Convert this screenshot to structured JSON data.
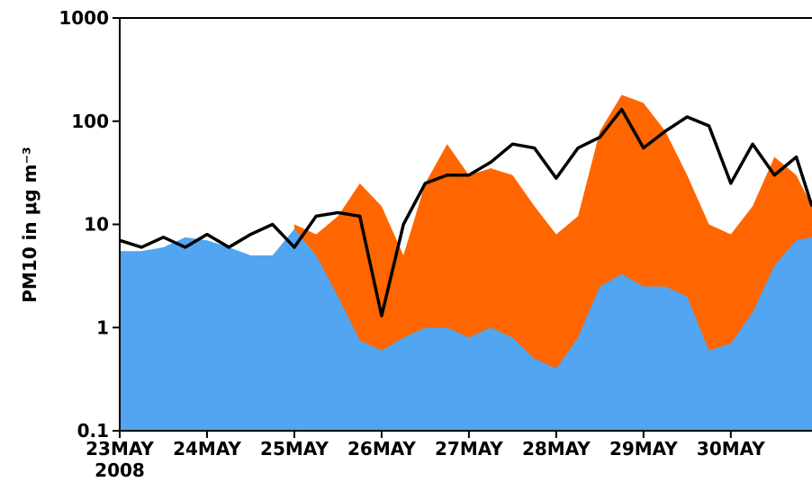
{
  "chart_data": {
    "type": "area",
    "ylabel": "PM10 in μg m⁻³",
    "x": [
      23.0,
      23.25,
      23.5,
      23.75,
      24.0,
      24.25,
      24.5,
      24.75,
      25.0,
      25.25,
      25.5,
      25.75,
      26.0,
      26.25,
      26.5,
      26.75,
      27.0,
      27.25,
      27.5,
      27.75,
      28.0,
      28.25,
      28.5,
      28.75,
      29.0,
      29.25,
      29.5,
      29.75,
      30.0,
      30.25,
      30.5,
      30.75,
      30.93
    ],
    "series": [
      {
        "color": "#ff6600",
        "style": "area",
        "values": [
          null,
          null,
          null,
          null,
          null,
          null,
          null,
          null,
          10,
          8,
          12,
          25,
          15,
          5,
          25,
          60,
          30,
          35,
          30,
          15,
          8,
          12,
          80,
          180,
          150,
          80,
          30,
          10,
          8,
          15,
          45,
          30,
          15
        ]
      },
      {
        "color": "#52a5f0",
        "style": "area",
        "values": [
          5.5,
          5.5,
          6,
          7.5,
          7,
          6,
          5,
          5,
          9,
          5,
          2,
          0.75,
          0.6,
          0.8,
          1.0,
          1.0,
          0.8,
          1.0,
          0.8,
          0.5,
          0.4,
          0.8,
          2.5,
          3.3,
          2.5,
          2.5,
          2,
          0.6,
          0.7,
          1.4,
          4,
          7,
          7.5
        ]
      },
      {
        "color": "#000000",
        "style": "line",
        "values": [
          7,
          6,
          7.5,
          6,
          8,
          6,
          8,
          10,
          6,
          12,
          13,
          12,
          1.3,
          10,
          25,
          30,
          30,
          40,
          60,
          55,
          28,
          55,
          70,
          130,
          55,
          80,
          110,
          90,
          25,
          60,
          30,
          45,
          15
        ]
      }
    ],
    "log_y": true,
    "xlim": [
      23,
      30.93
    ],
    "ylim": [
      0.1,
      1000
    ],
    "yticks": [
      0.1,
      1,
      10,
      100,
      1000
    ],
    "xticks": [
      {
        "value": 23,
        "label": "23MAY"
      },
      {
        "value": 24,
        "label": "24MAY"
      },
      {
        "value": 25,
        "label": "25MAY"
      },
      {
        "value": 26,
        "label": "26MAY"
      },
      {
        "value": 27,
        "label": "27MAY"
      },
      {
        "value": 28,
        "label": "28MAY"
      },
      {
        "value": 29,
        "label": "29MAY"
      },
      {
        "value": 30,
        "label": "30MAY"
      }
    ],
    "xtick_sublabel": "2008"
  }
}
